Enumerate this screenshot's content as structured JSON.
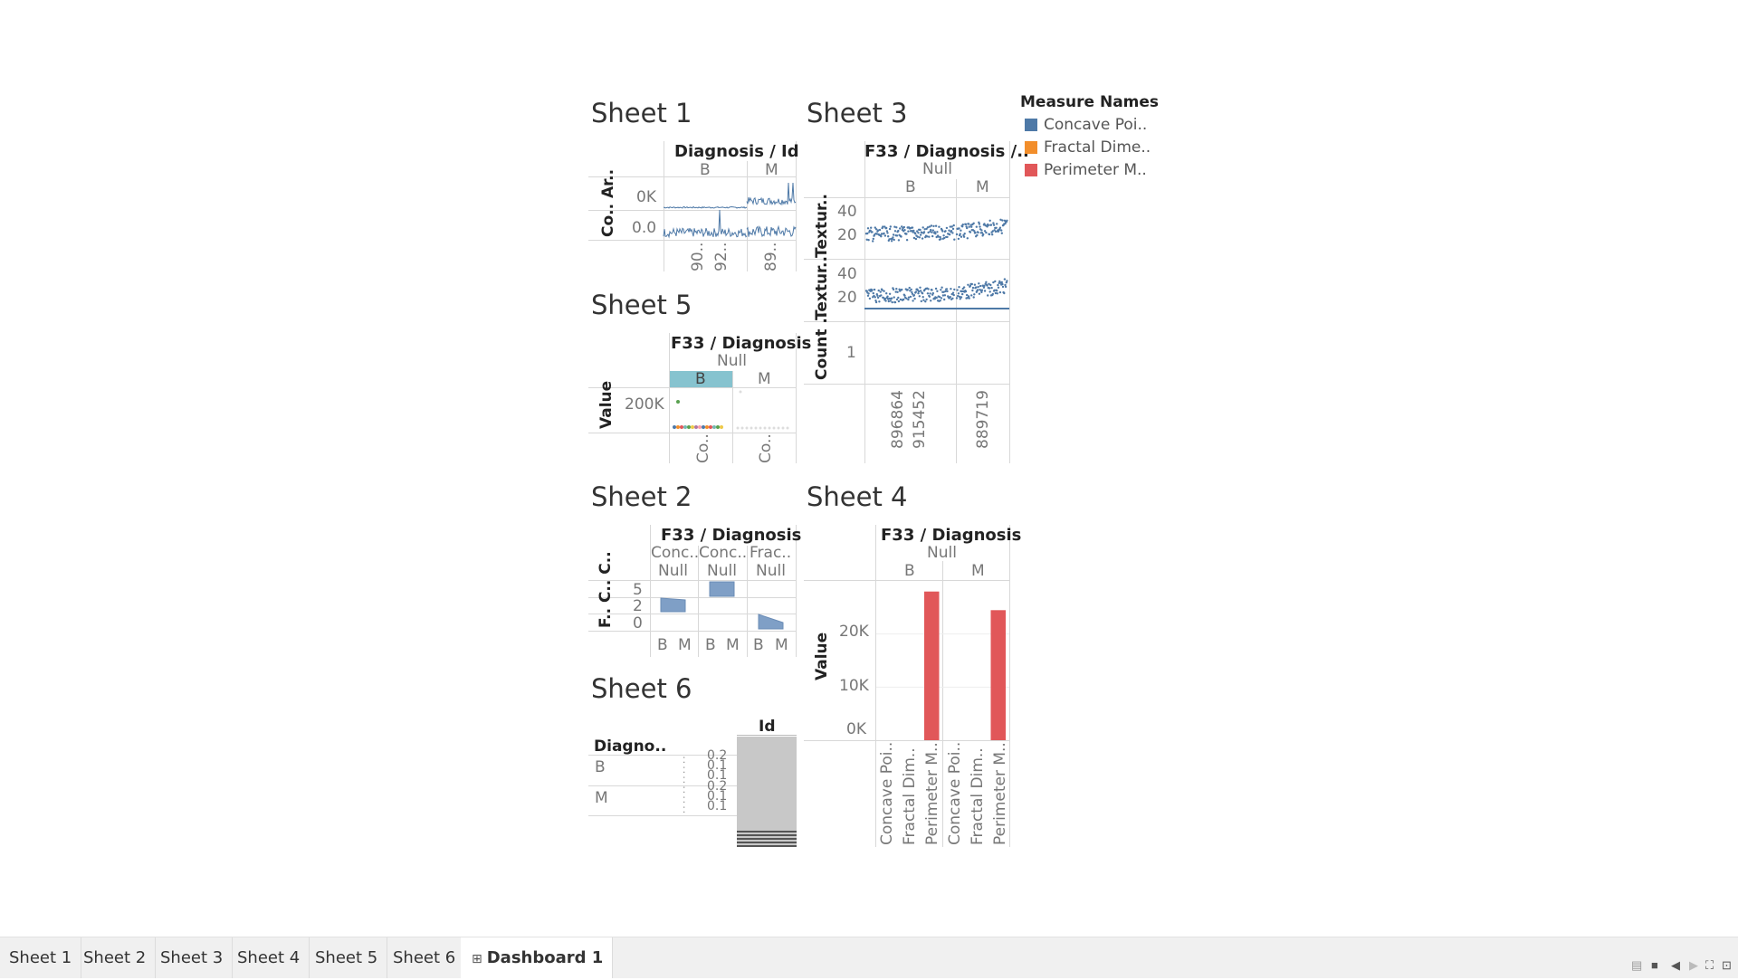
{
  "legend": {
    "title": "Measure Names",
    "items": [
      {
        "label": "Concave Poi..",
        "color": "#4e79a7"
      },
      {
        "label": "Fractal Dime..",
        "color": "#f28e2b"
      },
      {
        "label": "Perimeter M..",
        "color": "#e15759"
      }
    ]
  },
  "sheet1": {
    "title": "Sheet 1",
    "col_header": "Diagnosis / Id",
    "col_b": "B",
    "col_m": "M",
    "row1_label": "Co.. Ar..",
    "row2_label": "Co..",
    "tick1": "0K",
    "tick2": "0.0",
    "x_ticks": [
      "90..",
      "92..",
      "89.."
    ]
  },
  "sheet3": {
    "title": "Sheet 3",
    "col_header": "F33 / Diagnosis /..",
    "null": "Null",
    "col_b": "B",
    "col_m": "M",
    "row1_label": "Textur..",
    "row2_label": "Textur..",
    "row3_label": "Count ..",
    "ticks1": [
      "40",
      "20"
    ],
    "ticks2": [
      "40",
      "20"
    ],
    "tick3": "1",
    "x_ticks": [
      "896864",
      "915452",
      "889719"
    ]
  },
  "sheet5": {
    "title": "Sheet 5",
    "col_header": "F33 / Diagnosis",
    "null": "Null",
    "col_b": "B",
    "col_m": "M",
    "y_label": "Value",
    "tick": "200K",
    "x_ticks": [
      "Co..",
      "Co.."
    ]
  },
  "sheet2": {
    "title": "Sheet 2",
    "col_header": "F33 / Diagnosis",
    "sub_cols": [
      "Conc..",
      "Conc..",
      "Frac.."
    ],
    "null": "Null",
    "y_label": "F.. C.. C..",
    "ticks": [
      "5",
      "2",
      "0"
    ],
    "x_ticks": [
      "B",
      "M",
      "B",
      "M",
      "B",
      "M"
    ]
  },
  "sheet4": {
    "title": "Sheet 4",
    "col_header": "F33 / Diagnosis",
    "null": "Null",
    "col_b": "B",
    "col_m": "M",
    "y_label": "Value",
    "ticks": [
      "20K",
      "10K",
      "0K"
    ],
    "x_ticks": [
      "Concave Poi..",
      "Fractal Dim..",
      "Perimeter M..",
      "Concave Poi..",
      "Fractal Dim..",
      "Perimeter M.."
    ]
  },
  "sheet6": {
    "title": "Sheet 6",
    "col_header": "Id",
    "row_header": "Diagno..",
    "rows": [
      "B",
      "M"
    ],
    "values": [
      "0.2",
      "0.1",
      "0.1",
      "0.2",
      "0.1",
      "0.1"
    ]
  },
  "tabs": [
    "Sheet 1",
    "Sheet 2",
    "Sheet 3",
    "Sheet 4",
    "Sheet 5",
    "Sheet 6",
    "Dashboard 1"
  ],
  "chart_data": [
    {
      "type": "bar",
      "title": "Sheet 4",
      "ylabel": "Value",
      "categories": [
        "Concave Poi..",
        "Fractal Dim..",
        "Perimeter M..",
        "Concave Poi..",
        "Fractal Dim..",
        "Perimeter M.."
      ],
      "groups": [
        "B",
        "B",
        "B",
        "M",
        "M",
        "M"
      ],
      "values": [
        0,
        0,
        28000,
        0,
        0,
        24500
      ],
      "ylim": [
        0,
        30000
      ],
      "colors": [
        "#4e79a7",
        "#f28e2b",
        "#e15759",
        "#4e79a7",
        "#f28e2b",
        "#e15759"
      ]
    }
  ]
}
